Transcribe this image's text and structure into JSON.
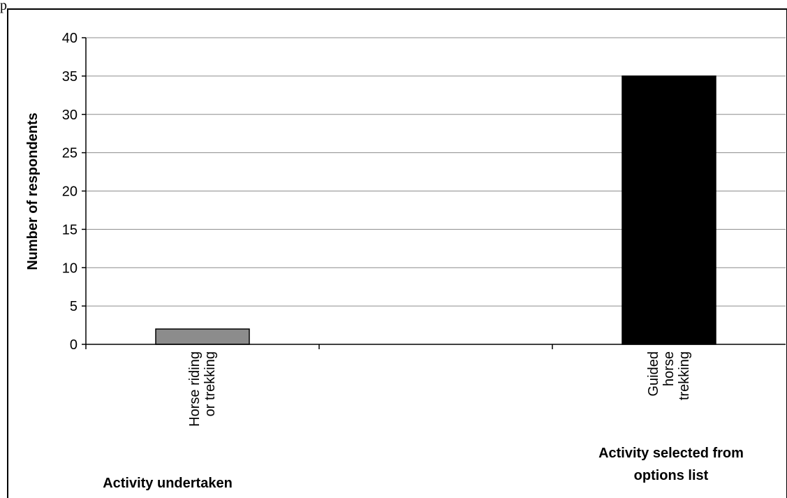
{
  "page": {
    "top_text": "p"
  },
  "chart_data": {
    "type": "bar",
    "categories": [
      "Horse riding or trekking",
      "Guided horse trekking"
    ],
    "category_label_lines": [
      [
        "Horse riding",
        "or trekking"
      ],
      [
        "Guided",
        "horse",
        "trekking"
      ]
    ],
    "values": [
      2,
      35
    ],
    "bar_colors": [
      "#8c8c8c",
      "#000000"
    ],
    "ylabel": "Number of respondents",
    "ylim": [
      0,
      40
    ],
    "yticks": [
      0,
      5,
      10,
      15,
      20,
      25,
      30,
      35,
      40
    ],
    "grid": true,
    "group_titles": [
      [
        "Activity undertaken"
      ],
      [
        "Activity selected from",
        "options list"
      ]
    ]
  },
  "colors": {
    "grid": "#8c8c8c",
    "frame": "#000000"
  }
}
